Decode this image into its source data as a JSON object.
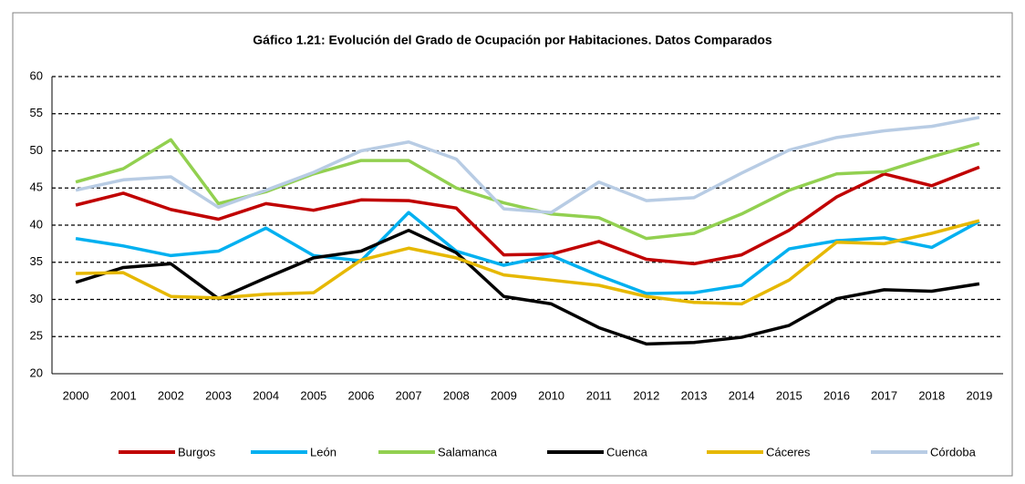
{
  "chart_data": {
    "type": "line",
    "title": "Gáfico 1.21: Evolución del Grado de Ocupación por Habitaciones. Datos Comparados",
    "categories": [
      "2000",
      "2001",
      "2002",
      "2003",
      "2004",
      "2005",
      "2006",
      "2007",
      "2008",
      "2009",
      "2010",
      "2011",
      "2012",
      "2013",
      "2014",
      "2015",
      "2016",
      "2017",
      "2018",
      "2019"
    ],
    "series": [
      {
        "name": "Burgos",
        "color": "#c00000",
        "values": [
          42.7,
          44.3,
          42.1,
          40.8,
          42.9,
          42.0,
          43.4,
          43.3,
          42.3,
          36.0,
          36.1,
          37.8,
          35.4,
          34.8,
          36.0,
          39.3,
          43.8,
          46.9,
          45.3,
          47.8
        ]
      },
      {
        "name": "León",
        "color": "#00b0f0",
        "values": [
          38.2,
          37.2,
          35.9,
          36.5,
          39.6,
          35.9,
          35.2,
          41.7,
          36.5,
          34.6,
          35.9,
          33.2,
          30.8,
          30.9,
          31.9,
          36.8,
          37.9,
          38.3,
          37.0,
          40.5
        ]
      },
      {
        "name": "Salamanca",
        "color": "#92d050",
        "values": [
          45.8,
          47.6,
          51.5,
          42.9,
          44.5,
          46.9,
          48.7,
          48.7,
          45.0,
          43.0,
          41.5,
          41.0,
          38.2,
          38.9,
          41.5,
          44.7,
          46.9,
          47.2,
          49.2,
          51.0
        ]
      },
      {
        "name": "Cuenca",
        "color": "#000000",
        "values": [
          32.3,
          34.3,
          34.8,
          30.1,
          32.9,
          35.6,
          36.5,
          39.3,
          36.3,
          30.4,
          29.4,
          26.2,
          24.0,
          24.2,
          24.9,
          26.5,
          30.1,
          31.3,
          31.1,
          32.1
        ]
      },
      {
        "name": "Cáceres",
        "color": "#e6b800",
        "values": [
          33.5,
          33.6,
          30.4,
          30.2,
          30.7,
          30.9,
          35.3,
          36.9,
          35.6,
          33.3,
          32.6,
          31.9,
          30.4,
          29.6,
          29.4,
          32.6,
          37.7,
          37.5,
          38.9,
          40.6
        ]
      },
      {
        "name": "Córdoba",
        "color": "#b8cce4",
        "values": [
          44.7,
          46.1,
          46.5,
          42.4,
          44.7,
          47.1,
          50.0,
          51.2,
          48.9,
          42.2,
          41.7,
          45.8,
          43.3,
          43.7,
          47.0,
          50.1,
          51.8,
          52.7,
          53.3,
          54.5
        ]
      }
    ],
    "ylim": [
      20,
      60
    ],
    "yticks": [
      20,
      25,
      30,
      35,
      40,
      45,
      50,
      55,
      60
    ],
    "grid": true
  }
}
